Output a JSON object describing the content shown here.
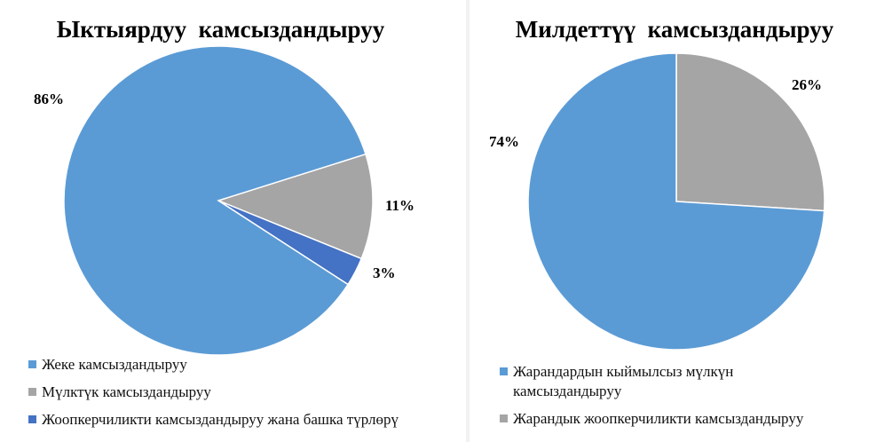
{
  "chart_data": [
    {
      "type": "pie",
      "title": "Ыктыярдуу  камсыздандыруу",
      "slices": [
        {
          "name": "Жеке камсыздандыруу",
          "value": 86,
          "label": "86%",
          "color": "#5b9bd5"
        },
        {
          "name": "Мүлктүк камсыздандыруу",
          "value": 11,
          "label": "11%",
          "color": "#a5a5a5"
        },
        {
          "name": "Жоопкерчиликти камсыздандыруу жана башка түрлөрү",
          "value": 3,
          "label": "3%",
          "color": "#4472c4"
        }
      ],
      "legend": "bottom"
    },
    {
      "type": "pie",
      "title": "Милдеттүү  камсыздандыруу",
      "slices": [
        {
          "name": "Жарандардын кыймылсыз мүлкүн камсыздандыруу",
          "value": 74,
          "label": "74%",
          "color": "#5b9bd5"
        },
        {
          "name": "Жарандык жоопкерчиликти камсыздандыруу",
          "value": 26,
          "label": "26%",
          "color": "#a5a5a5"
        }
      ],
      "legend": "bottom"
    }
  ]
}
